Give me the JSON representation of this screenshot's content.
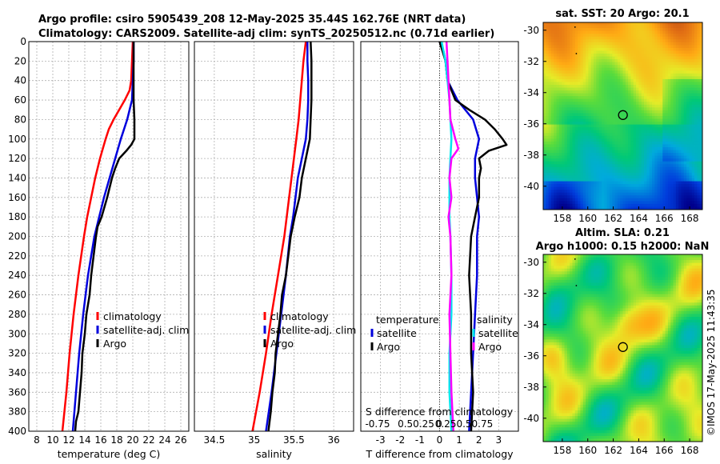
{
  "titles": {
    "line1": "Argo profile: csiro 5905439_208 12-May-2025 35.44S 162.76E (NRT data)",
    "line2": "Climatology: CARS2009. Satellite-adj clim: synTS_20250512.nc (0.71d earlier)"
  },
  "copyright": "©IMOS 17-May-2025 11:43:35",
  "colors": {
    "climatology": "#ff0000",
    "satellite": "#0000dd",
    "argo": "#000000",
    "t_diff_argo": "#00e5ee",
    "s_diff_argo": "#ff00ff"
  },
  "chart_data": [
    {
      "type": "line",
      "title": "",
      "xlabel": "temperature (deg C)",
      "ylabel": "",
      "xlim": [
        7,
        27
      ],
      "ylim": [
        0,
        400
      ],
      "y_reversed": true,
      "xticks": [
        "8",
        "10",
        "12",
        "14",
        "16",
        "18",
        "20",
        "22",
        "24",
        "26"
      ],
      "xtick_values": [
        8,
        10,
        12,
        14,
        16,
        18,
        20,
        22,
        24,
        26
      ],
      "yticks": [
        "0",
        "20",
        "40",
        "60",
        "80",
        "100",
        "120",
        "140",
        "160",
        "180",
        "200",
        "220",
        "240",
        "260",
        "280",
        "300",
        "320",
        "340",
        "360",
        "380",
        "400"
      ],
      "legend": [
        "climatology",
        "satellite-adj. clim",
        "Argo"
      ],
      "series": [
        {
          "name": "climatology",
          "depth": [
            0,
            20,
            40,
            50,
            60,
            70,
            80,
            90,
            100,
            120,
            140,
            160,
            180,
            200,
            240,
            280,
            320,
            360,
            400
          ],
          "values": [
            20.0,
            19.9,
            19.8,
            19.6,
            19.0,
            18.3,
            17.6,
            17.0,
            16.6,
            15.9,
            15.3,
            14.8,
            14.3,
            13.9,
            13.2,
            12.6,
            12.1,
            11.7,
            11.2
          ]
        },
        {
          "name": "satellite-adj. clim",
          "depth": [
            0,
            20,
            40,
            60,
            80,
            100,
            120,
            140,
            160,
            180,
            200,
            240,
            280,
            320,
            360,
            400
          ],
          "values": [
            20.1,
            20.1,
            20.0,
            19.9,
            19.3,
            18.5,
            17.8,
            17.1,
            16.4,
            15.8,
            15.2,
            14.4,
            13.8,
            13.3,
            12.9,
            12.5
          ]
        },
        {
          "name": "Argo",
          "depth": [
            0,
            20,
            40,
            60,
            80,
            100,
            106,
            112,
            120,
            130,
            140,
            160,
            180,
            190,
            200,
            220,
            240,
            260,
            280,
            300,
            320,
            340,
            360,
            380,
            390,
            400
          ],
          "values": [
            20.1,
            20.1,
            20.1,
            20.1,
            20.2,
            20.2,
            19.8,
            19.2,
            18.3,
            17.8,
            17.4,
            16.8,
            16.1,
            15.6,
            15.4,
            15.1,
            14.8,
            14.6,
            14.2,
            14.0,
            13.7,
            13.6,
            13.4,
            13.2,
            12.9,
            12.8
          ]
        }
      ]
    },
    {
      "type": "line",
      "title": "",
      "xlabel": "salinity",
      "ylabel": "",
      "xlim": [
        34.25,
        36.25
      ],
      "ylim": [
        0,
        400
      ],
      "y_reversed": true,
      "xticks": [
        "34.5",
        "35",
        "35.5",
        "36"
      ],
      "xtick_values": [
        34.5,
        35,
        35.5,
        36
      ],
      "legend": [
        "climatology",
        "satellite-adj. clim",
        "Argo"
      ],
      "series": [
        {
          "name": "climatology",
          "depth": [
            0,
            20,
            40,
            60,
            80,
            100,
            120,
            140,
            160,
            180,
            200,
            240,
            280,
            320,
            360,
            400
          ],
          "values": [
            35.65,
            35.62,
            35.6,
            35.58,
            35.56,
            35.53,
            35.5,
            35.47,
            35.44,
            35.41,
            35.38,
            35.3,
            35.22,
            35.15,
            35.07,
            34.98
          ]
        },
        {
          "name": "satellite-adj. clim",
          "depth": [
            0,
            20,
            40,
            60,
            80,
            100,
            120,
            140,
            160,
            180,
            200,
            240,
            280,
            320,
            360,
            400
          ],
          "values": [
            35.67,
            35.67,
            35.68,
            35.68,
            35.67,
            35.65,
            35.6,
            35.55,
            35.52,
            35.49,
            35.45,
            35.4,
            35.34,
            35.28,
            35.22,
            35.15
          ]
        },
        {
          "name": "Argo",
          "depth": [
            0,
            20,
            40,
            60,
            80,
            100,
            120,
            140,
            160,
            180,
            200,
            220,
            240,
            260,
            280,
            300,
            320,
            340,
            360,
            380,
            400
          ],
          "values": [
            35.71,
            35.72,
            35.72,
            35.72,
            35.71,
            35.7,
            35.65,
            35.6,
            35.57,
            35.51,
            35.46,
            35.43,
            35.4,
            35.35,
            35.33,
            35.3,
            35.27,
            35.26,
            35.23,
            35.21,
            35.18
          ]
        }
      ]
    },
    {
      "type": "line",
      "title": "",
      "xlabel": "T difference from climatology",
      "x2label": "S difference from climatology",
      "ylabel": "",
      "xlim": [
        -4,
        4
      ],
      "ylim": [
        0,
        400
      ],
      "y_reversed": true,
      "xticks": [
        "-3",
        "-2",
        "-1",
        "0",
        "1",
        "2",
        "3"
      ],
      "xtick_values": [
        -3,
        -2,
        -1,
        0,
        1,
        2,
        3
      ],
      "s_xticks": [
        "-0.75",
        "0.50.25",
        "0",
        "0.250.50.75"
      ],
      "legend_left_title": "temperature",
      "legend_right_title": "salinity",
      "legend": [
        "satellite",
        "Argo"
      ],
      "series": [
        {
          "name": "T satellite",
          "depth": [
            0,
            10,
            20,
            40,
            60,
            80,
            100,
            120,
            140,
            160,
            180,
            200,
            240,
            280,
            320,
            360,
            400
          ],
          "values": [
            0.0,
            0.2,
            0.3,
            0.4,
            0.9,
            1.7,
            2.0,
            1.8,
            1.8,
            1.9,
            2.0,
            1.9,
            1.9,
            1.8,
            1.7,
            1.6,
            1.5
          ]
        },
        {
          "name": "T Argo",
          "depth": [
            0,
            20,
            40,
            60,
            70,
            80,
            90,
            100,
            106,
            112,
            120,
            130,
            140,
            160,
            180,
            200,
            240,
            280,
            320,
            360,
            400
          ],
          "values": [
            0.0,
            0.3,
            0.4,
            0.8,
            1.5,
            2.3,
            2.8,
            3.2,
            3.4,
            2.5,
            2.0,
            2.1,
            2.0,
            2.0,
            1.8,
            1.6,
            1.5,
            1.6,
            1.6,
            1.7,
            1.6
          ]
        },
        {
          "name": "S satellite",
          "depth": [
            0,
            20,
            40,
            60,
            80,
            100,
            120,
            140,
            160,
            180,
            200,
            240,
            280,
            320,
            360,
            400
          ],
          "values": [
            0.1,
            0.3,
            0.4,
            0.5,
            0.55,
            0.6,
            0.55,
            0.5,
            0.5,
            0.5,
            0.55,
            0.6,
            0.6,
            0.5,
            0.5,
            0.6
          ]
        },
        {
          "name": "S Argo",
          "depth": [
            0,
            20,
            40,
            60,
            80,
            100,
            110,
            120,
            140,
            160,
            180,
            200,
            240,
            280,
            320,
            360,
            400
          ],
          "values": [
            0.35,
            0.4,
            0.45,
            0.5,
            0.55,
            0.8,
            0.95,
            0.6,
            0.5,
            0.6,
            0.45,
            0.55,
            0.6,
            0.5,
            0.55,
            0.6,
            0.7
          ]
        }
      ]
    },
    {
      "type": "heatmap",
      "title": "sat. SST: 20 Argo: 20.1",
      "xlim": [
        156.5,
        169
      ],
      "ylim": [
        -41.5,
        -29.5
      ],
      "xticks": [
        "158",
        "160",
        "162",
        "164",
        "166",
        "168"
      ],
      "xtick_values": [
        158,
        160,
        162,
        164,
        166,
        168
      ],
      "yticks": [
        "-30",
        "-32",
        "-34",
        "-36",
        "-38",
        "-40"
      ],
      "ytick_values": [
        -30,
        -32,
        -34,
        -36,
        -38,
        -40
      ],
      "marker": {
        "lon": 162.76,
        "lat": -35.44
      }
    },
    {
      "type": "heatmap",
      "title": "Altim. SLA: 0.21",
      "subtitle": "Argo h1000: 0.15 h2000: NaN",
      "xlim": [
        156.5,
        169
      ],
      "ylim": [
        -41.5,
        -29.5
      ],
      "xticks": [
        "158",
        "160",
        "162",
        "164",
        "166",
        "168"
      ],
      "xtick_values": [
        158,
        160,
        162,
        164,
        166,
        168
      ],
      "yticks": [
        "-30",
        "-32",
        "-34",
        "-36",
        "-38",
        "-40"
      ],
      "ytick_values": [
        -30,
        -32,
        -34,
        -36,
        -38,
        -40
      ],
      "marker": {
        "lon": 162.76,
        "lat": -35.44
      }
    }
  ]
}
